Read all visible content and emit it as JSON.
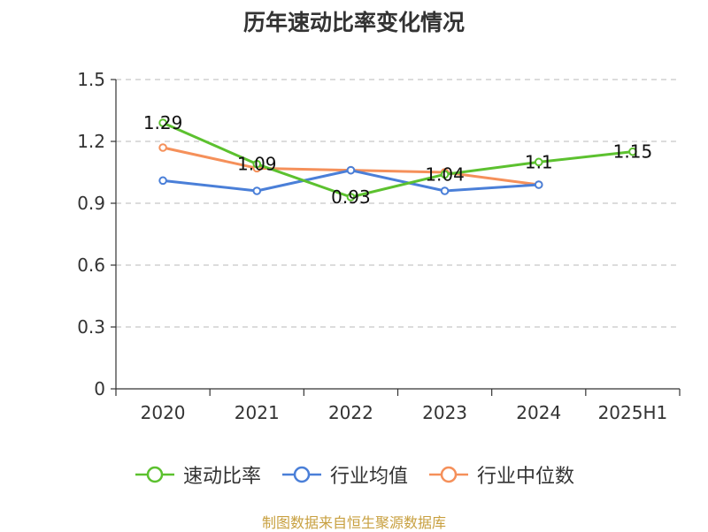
{
  "chart_data": {
    "type": "line",
    "title": "历年速动比率变化情况",
    "categories": [
      "2020",
      "2021",
      "2022",
      "2023",
      "2024",
      "2025H1"
    ],
    "ylim": [
      0,
      1.5
    ],
    "yticks": [
      "0",
      "0.3",
      "0.6",
      "0.9",
      "1.2",
      "1.5"
    ],
    "grid": true,
    "legend_position": "bottom",
    "series": [
      {
        "name": "速动比率",
        "color": "#5cc12f",
        "values": [
          1.29,
          1.09,
          0.93,
          1.04,
          1.1,
          1.15
        ],
        "labels": [
          "1.29",
          "1.09",
          "0.93",
          "1.04",
          "1.1",
          "1.15"
        ]
      },
      {
        "name": "行业均值",
        "color": "#4a7fd8",
        "values": [
          1.01,
          0.96,
          1.06,
          0.96,
          0.99,
          null
        ]
      },
      {
        "name": "行业中位数",
        "color": "#f5905a",
        "values": [
          1.17,
          1.07,
          1.06,
          1.05,
          0.99,
          null
        ]
      }
    ],
    "source": "制图数据来自恒生聚源数据库"
  }
}
